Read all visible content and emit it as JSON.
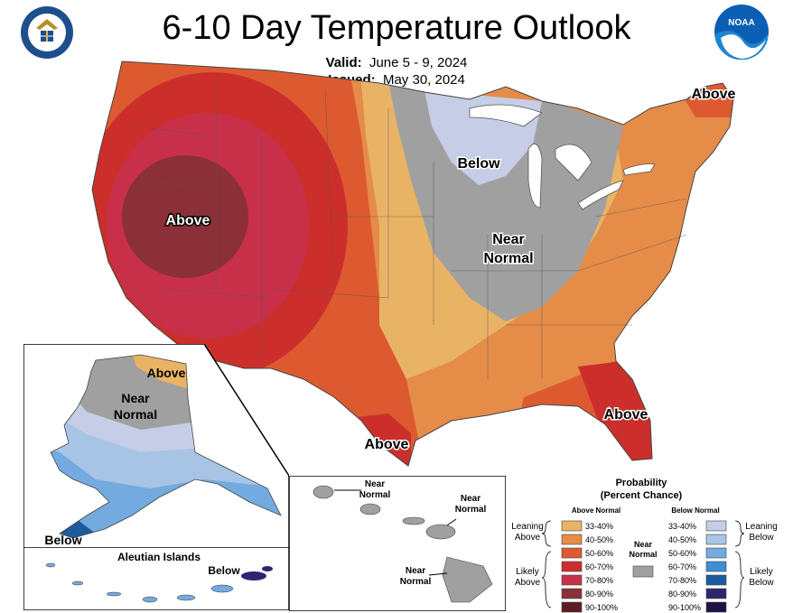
{
  "title": "6-10 Day Temperature Outlook",
  "valid": {
    "label": "Valid:",
    "value": "June 5 - 9, 2024"
  },
  "issued": {
    "label": "Issued:",
    "value": "May 30, 2024"
  },
  "noaa_logo_text": "NOAA",
  "map_labels": {
    "conus_above_west": "Above",
    "conus_below_north": "Below",
    "conus_near_1": "Near",
    "conus_near_2": "Normal",
    "conus_above_ne": "Above",
    "conus_above_se": "Above",
    "conus_above_tx": "Above",
    "ak_above": "Above",
    "ak_near_1": "Near",
    "ak_near_2": "Normal",
    "ak_below": "Below",
    "aleutian_title": "Aleutian Islands",
    "aleutian_below": "Below",
    "hi_near_a1": "Near",
    "hi_near_a2": "Normal",
    "hi_near_b1": "Near",
    "hi_near_b2": "Normal",
    "hi_near_c1": "Near",
    "hi_near_c2": "Normal"
  },
  "legend": {
    "title1": "Probability",
    "title2": "(Percent Chance)",
    "above_header": "Above Normal",
    "below_header": "Below Normal",
    "near_label_1": "Near",
    "near_label_2": "Normal",
    "leaning_above_1": "Leaning",
    "leaning_above_2": "Above",
    "likely_above_1": "Likely",
    "likely_above_2": "Above",
    "leaning_below_1": "Leaning",
    "leaning_below_2": "Below",
    "likely_below_1": "Likely",
    "likely_below_2": "Below",
    "above_bins": [
      {
        "range": "33-40%",
        "color": "#e9b366"
      },
      {
        "range": "40-50%",
        "color": "#e58c49"
      },
      {
        "range": "50-60%",
        "color": "#dd5a31"
      },
      {
        "range": "60-70%",
        "color": "#cc2f2b"
      },
      {
        "range": "70-80%",
        "color": "#c8304a"
      },
      {
        "range": "80-90%",
        "color": "#8b3038"
      },
      {
        "range": "90-100%",
        "color": "#5c1c22"
      }
    ],
    "below_bins": [
      {
        "range": "33-40%",
        "color": "#c6cde6"
      },
      {
        "range": "40-50%",
        "color": "#a7c4e4"
      },
      {
        "range": "50-60%",
        "color": "#73aadf"
      },
      {
        "range": "60-70%",
        "color": "#3d8ed6"
      },
      {
        "range": "70-80%",
        "color": "#1c5c9c"
      },
      {
        "range": "80-90%",
        "color": "#2e2570"
      },
      {
        "range": "90-100%",
        "color": "#1d1245"
      }
    ],
    "near_color": "#a0a0a0"
  }
}
